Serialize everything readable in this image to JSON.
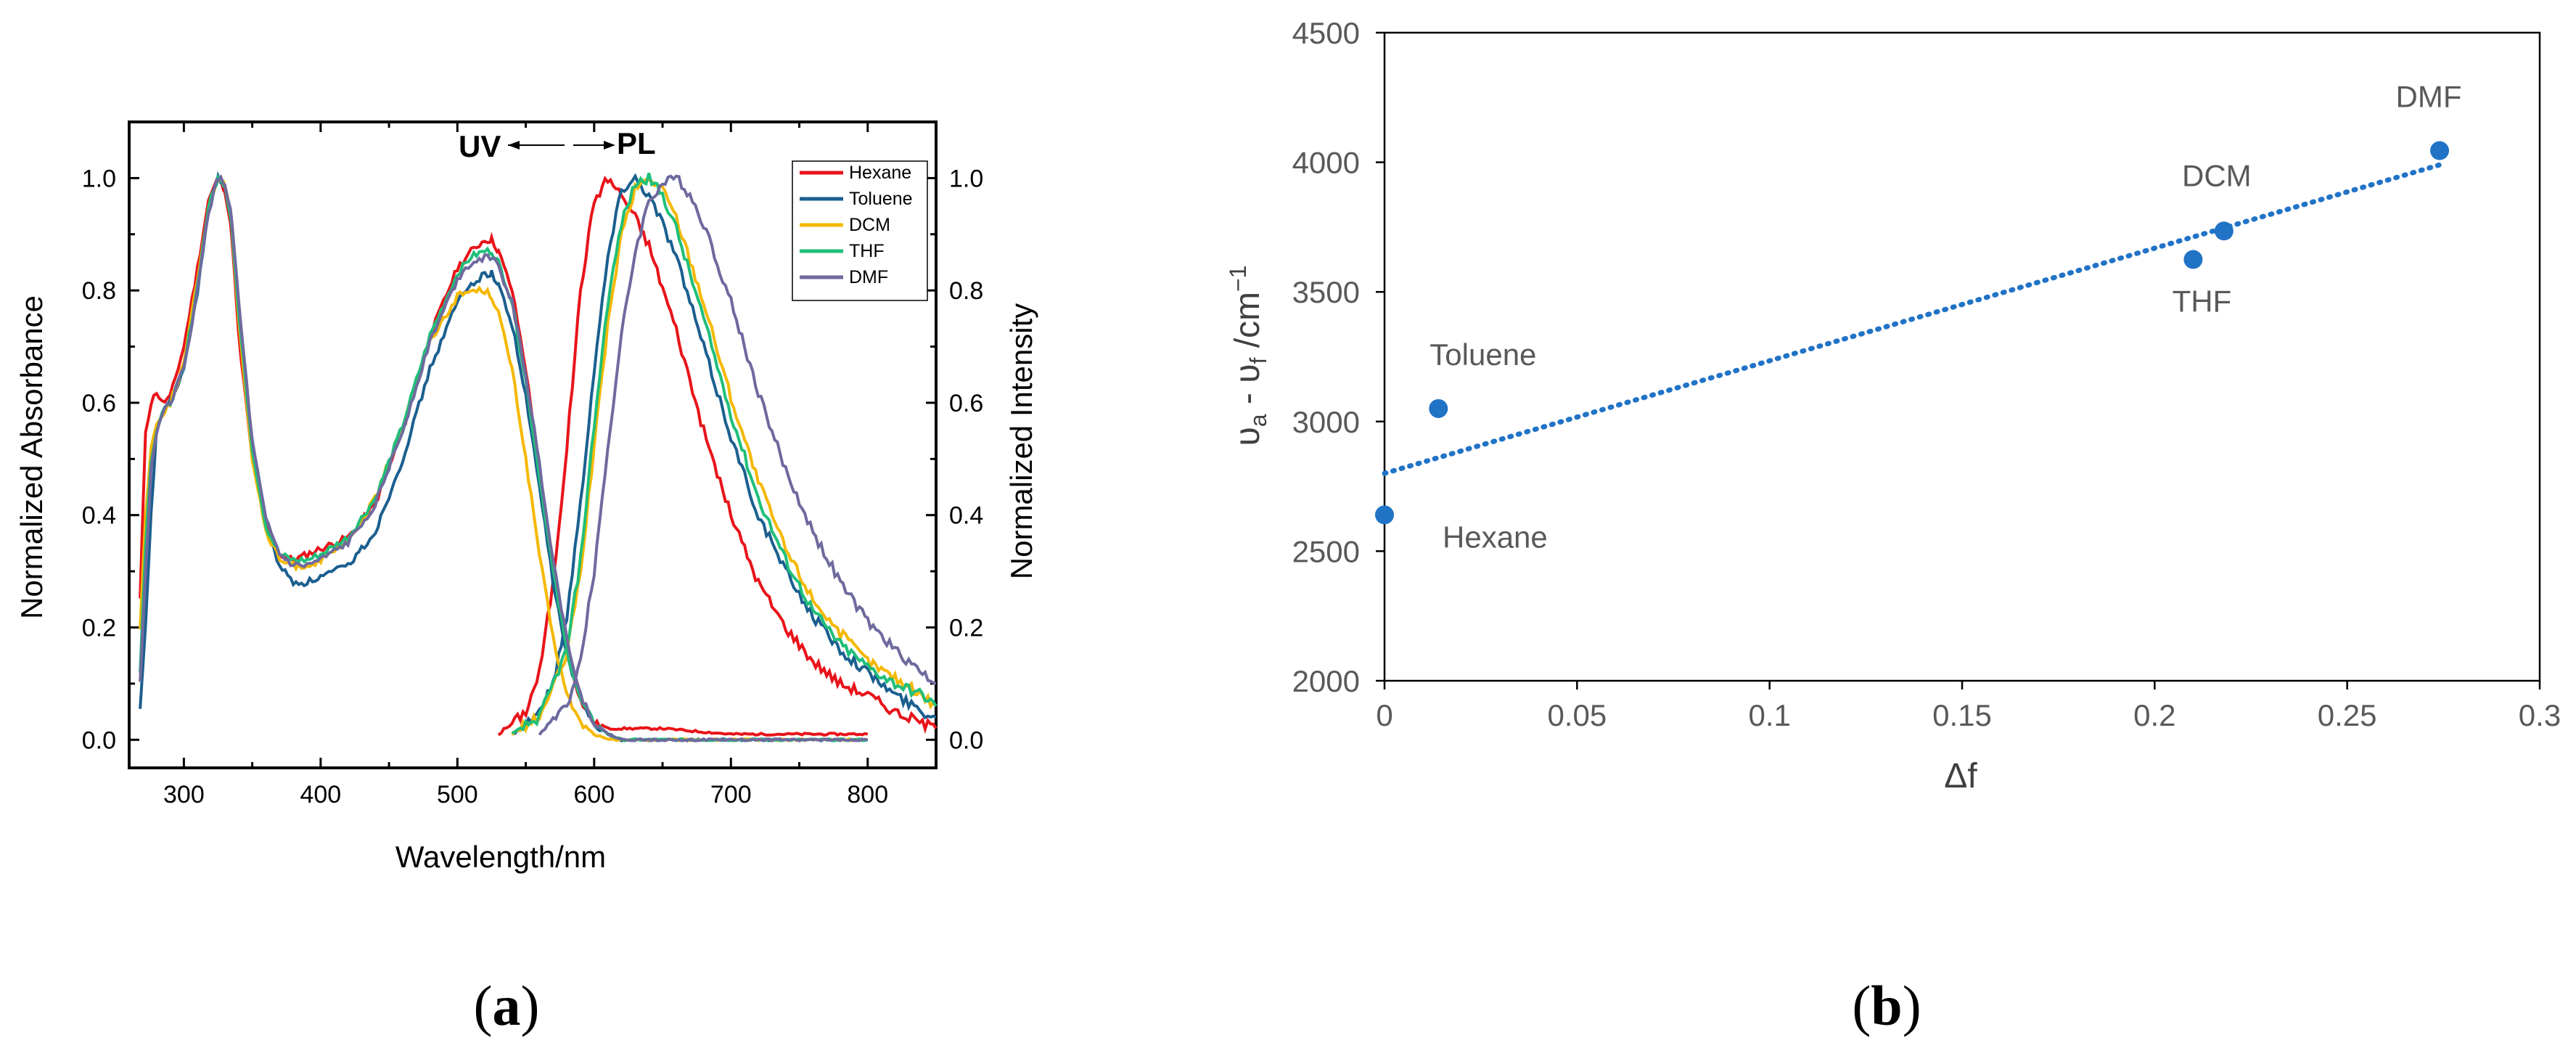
{
  "chart_data": [
    {
      "type": "line",
      "panel": "(a)",
      "title": "",
      "xlabel": "Wavelength/nm",
      "ylabel_left": "Normalized Absorbance",
      "ylabel_right": "Normalized Intensity",
      "annotation": {
        "left": "UV",
        "right": "PL"
      },
      "xlim": [
        260,
        850
      ],
      "ylim": [
        -0.05,
        1.1
      ],
      "x_ticks": [
        300,
        400,
        500,
        600,
        700,
        800
      ],
      "y_ticks": [
        0.0,
        0.2,
        0.4,
        0.6,
        0.8,
        1.0
      ],
      "y_tick_labels": [
        "0.0",
        "0.2",
        "0.4",
        "0.6",
        "0.8",
        "1.0"
      ],
      "legend_position": "top-right",
      "series": [
        {
          "name": "Hexane",
          "color": "#e8141a",
          "absorbance": {
            "x": [
              268,
              272,
              276,
              280,
              284,
              290,
              300,
              310,
              318,
              325,
              330,
              335,
              340,
              350,
              360,
              370,
              380,
              390,
              400,
              420,
              440,
              460,
              480,
              500,
              510,
              520,
              525,
              530,
              540,
              550,
              560,
              570,
              580,
              590,
              600,
              610,
              620,
              650,
              700,
              800
            ],
            "y": [
              0.25,
              0.55,
              0.6,
              0.62,
              0.6,
              0.61,
              0.7,
              0.84,
              0.96,
              1.0,
              0.98,
              0.9,
              0.72,
              0.5,
              0.38,
              0.33,
              0.32,
              0.33,
              0.34,
              0.36,
              0.42,
              0.55,
              0.72,
              0.84,
              0.87,
              0.89,
              0.89,
              0.87,
              0.8,
              0.66,
              0.48,
              0.3,
              0.16,
              0.07,
              0.03,
              0.02,
              0.02,
              0.02,
              0.01,
              0.01
            ]
          },
          "emission": {
            "x": [
              530,
              550,
              560,
              570,
              580,
              590,
              600,
              610,
              620,
              630,
              640,
              660,
              680,
              700,
              720,
              740,
              760,
              780,
              800,
              820,
              840,
              850
            ],
            "y": [
              0.01,
              0.05,
              0.12,
              0.28,
              0.52,
              0.8,
              0.96,
              1.0,
              0.97,
              0.93,
              0.88,
              0.73,
              0.55,
              0.4,
              0.28,
              0.2,
              0.14,
              0.1,
              0.08,
              0.05,
              0.03,
              0.02
            ]
          }
        },
        {
          "name": "Toluene",
          "color": "#1b5f8f",
          "absorbance": {
            "x": [
              268,
              272,
              276,
              280,
              284,
              290,
              300,
              310,
              318,
              325,
              330,
              335,
              340,
              350,
              360,
              370,
              380,
              390,
              400,
              420,
              440,
              460,
              480,
              500,
              510,
              520,
              525,
              530,
              540,
              550,
              560,
              570,
              580,
              590,
              600,
              610,
              620,
              650,
              700,
              800
            ],
            "y": [
              0.05,
              0.2,
              0.4,
              0.55,
              0.58,
              0.6,
              0.66,
              0.8,
              0.94,
              1.0,
              0.99,
              0.92,
              0.76,
              0.52,
              0.38,
              0.31,
              0.28,
              0.28,
              0.29,
              0.31,
              0.37,
              0.5,
              0.66,
              0.78,
              0.81,
              0.83,
              0.83,
              0.81,
              0.74,
              0.61,
              0.45,
              0.28,
              0.15,
              0.07,
              0.03,
              0.01,
              0.0,
              0.0,
              0.0,
              0.0
            ]
          },
          "emission": {
            "x": [
              540,
              560,
              570,
              580,
              590,
              600,
              610,
              620,
              630,
              640,
              650,
              660,
              680,
              700,
              720,
              740,
              760,
              780,
              800,
              820,
              840,
              850
            ],
            "y": [
              0.01,
              0.05,
              0.1,
              0.22,
              0.42,
              0.66,
              0.86,
              0.98,
              1.0,
              0.97,
              0.92,
              0.86,
              0.7,
              0.54,
              0.4,
              0.3,
              0.22,
              0.16,
              0.12,
              0.08,
              0.05,
              0.04
            ]
          }
        },
        {
          "name": "DCM",
          "color": "#f5b800",
          "absorbance": {
            "x": [
              268,
              272,
              276,
              280,
              284,
              290,
              300,
              310,
              318,
              325,
              330,
              335,
              340,
              350,
              360,
              370,
              380,
              390,
              400,
              420,
              440,
              460,
              480,
              500,
              510,
              520,
              525,
              530,
              540,
              550,
              560,
              570,
              580,
              590,
              600,
              610,
              620,
              650,
              700,
              800
            ],
            "y": [
              0.2,
              0.4,
              0.52,
              0.56,
              0.58,
              0.6,
              0.67,
              0.82,
              0.95,
              1.0,
              0.99,
              0.92,
              0.75,
              0.5,
              0.37,
              0.32,
              0.31,
              0.31,
              0.32,
              0.35,
              0.43,
              0.56,
              0.71,
              0.79,
              0.8,
              0.8,
              0.79,
              0.76,
              0.66,
              0.5,
              0.33,
              0.18,
              0.08,
              0.03,
              0.01,
              0.0,
              0.0,
              0.0,
              0.0,
              0.0
            ]
          },
          "emission": {
            "x": [
              540,
              560,
              580,
              590,
              600,
              610,
              620,
              630,
              640,
              650,
              660,
              680,
              700,
              720,
              740,
              760,
              780,
              800,
              820,
              840,
              850
            ],
            "y": [
              0.01,
              0.04,
              0.15,
              0.3,
              0.52,
              0.74,
              0.9,
              0.98,
              1.0,
              0.98,
              0.93,
              0.78,
              0.61,
              0.46,
              0.34,
              0.25,
              0.19,
              0.14,
              0.11,
              0.08,
              0.06
            ]
          }
        },
        {
          "name": "THF",
          "color": "#1fbf7a",
          "absorbance": {
            "x": [
              268,
              272,
              276,
              280,
              284,
              290,
              300,
              310,
              318,
              325,
              330,
              335,
              340,
              350,
              360,
              370,
              380,
              390,
              400,
              420,
              440,
              460,
              480,
              500,
              510,
              520,
              525,
              530,
              540,
              550,
              560,
              570,
              580,
              590,
              600,
              610,
              620,
              650,
              700,
              800
            ],
            "y": [
              0.12,
              0.35,
              0.5,
              0.55,
              0.58,
              0.6,
              0.66,
              0.81,
              0.95,
              1.0,
              0.99,
              0.92,
              0.76,
              0.52,
              0.38,
              0.33,
              0.32,
              0.32,
              0.33,
              0.36,
              0.43,
              0.56,
              0.72,
              0.83,
              0.86,
              0.87,
              0.87,
              0.85,
              0.78,
              0.64,
              0.47,
              0.3,
              0.16,
              0.07,
              0.03,
              0.01,
              0.0,
              0.0,
              0.0,
              0.0
            ]
          },
          "emission": {
            "x": [
              540,
              560,
              580,
              590,
              600,
              610,
              620,
              630,
              640,
              650,
              660,
              680,
              700,
              720,
              740,
              760,
              780,
              800,
              820,
              840,
              850
            ],
            "y": [
              0.01,
              0.04,
              0.16,
              0.32,
              0.56,
              0.78,
              0.92,
              0.99,
              1.0,
              0.97,
              0.91,
              0.75,
              0.58,
              0.43,
              0.32,
              0.23,
              0.17,
              0.13,
              0.1,
              0.08,
              0.06
            ]
          }
        },
        {
          "name": "DMF",
          "color": "#6e6a9e",
          "absorbance": {
            "x": [
              268,
              272,
              276,
              280,
              284,
              290,
              300,
              310,
              318,
              325,
              330,
              335,
              340,
              350,
              360,
              370,
              380,
              390,
              400,
              420,
              440,
              460,
              480,
              500,
              510,
              520,
              525,
              530,
              540,
              550,
              560,
              570,
              580,
              590,
              600,
              610,
              620,
              650,
              700,
              800
            ],
            "y": [
              0.1,
              0.3,
              0.48,
              0.55,
              0.58,
              0.6,
              0.66,
              0.8,
              0.94,
              1.0,
              0.99,
              0.93,
              0.78,
              0.53,
              0.39,
              0.33,
              0.31,
              0.31,
              0.32,
              0.35,
              0.42,
              0.55,
              0.71,
              0.82,
              0.85,
              0.86,
              0.86,
              0.84,
              0.78,
              0.65,
              0.49,
              0.32,
              0.18,
              0.08,
              0.03,
              0.01,
              0.0,
              0.0,
              0.0,
              0.0
            ]
          },
          "emission": {
            "x": [
              560,
              580,
              590,
              600,
              610,
              620,
              630,
              640,
              650,
              660,
              670,
              680,
              700,
              720,
              740,
              760,
              780,
              800,
              820,
              840,
              850
            ],
            "y": [
              0.01,
              0.06,
              0.14,
              0.3,
              0.52,
              0.72,
              0.87,
              0.96,
              0.99,
              1.0,
              0.97,
              0.92,
              0.78,
              0.62,
              0.48,
              0.37,
              0.28,
              0.21,
              0.16,
              0.12,
              0.1
            ]
          }
        }
      ]
    },
    {
      "type": "scatter",
      "panel": "(b)",
      "title": "",
      "xlabel": "Δf",
      "ylabel": "υa - υf /cm-1",
      "ylabel_parts": {
        "main": "υ",
        "sub1": "a",
        "dash": " - υ",
        "sub2": "f",
        "unit": " /cm",
        "sup": "−1"
      },
      "xlim": [
        0,
        0.3
      ],
      "ylim": [
        2000,
        4500
      ],
      "x_ticks": [
        0,
        0.05,
        0.1,
        0.15,
        0.2,
        0.25,
        0.3
      ],
      "x_tick_labels": [
        "0",
        "0.05",
        "0.1",
        "0.15",
        "0.2",
        "0.25",
        "0.3"
      ],
      "y_ticks": [
        2000,
        2500,
        3000,
        3500,
        4000,
        4500
      ],
      "y_tick_labels": [
        "2000",
        "2500",
        "3000",
        "3500",
        "4000",
        "4500"
      ],
      "grid": false,
      "marker_color": "#2173c6",
      "points": [
        {
          "label": "Hexane",
          "x": 0.0,
          "y": 2640
        },
        {
          "label": "Toluene",
          "x": 0.014,
          "y": 3050
        },
        {
          "label": "THF",
          "x": 0.21,
          "y": 3625
        },
        {
          "label": "DCM",
          "x": 0.218,
          "y": 3735
        },
        {
          "label": "DMF",
          "x": 0.274,
          "y": 4045
        }
      ],
      "trendline": {
        "style": "dotted",
        "x": [
          0,
          0.274
        ],
        "y": [
          2800,
          3990
        ]
      }
    }
  ],
  "panel_labels": {
    "a": "a",
    "b": "b"
  }
}
